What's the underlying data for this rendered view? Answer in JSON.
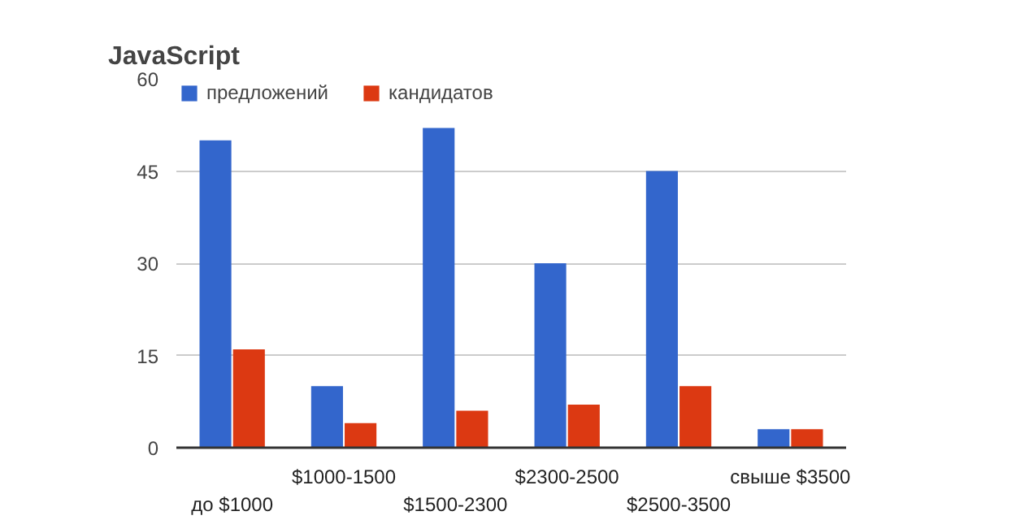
{
  "chart_data": {
    "type": "bar",
    "title": "JavaScript",
    "categories": [
      "до $1000",
      "$1000-1500",
      "$1500-2300",
      "$2300-2500",
      "$2500-3500",
      "свыше $3500"
    ],
    "series": [
      {
        "name": "предложений",
        "color": "#3366cc",
        "values": [
          50,
          10,
          52,
          30,
          45,
          3
        ]
      },
      {
        "name": "кандидатов",
        "color": "#dc3912",
        "values": [
          16,
          4,
          6,
          7,
          10,
          3
        ]
      }
    ],
    "ylim": [
      0,
      60
    ],
    "yticks": [
      0,
      15,
      30,
      45,
      60
    ],
    "grid": "y",
    "legend": "top left"
  }
}
